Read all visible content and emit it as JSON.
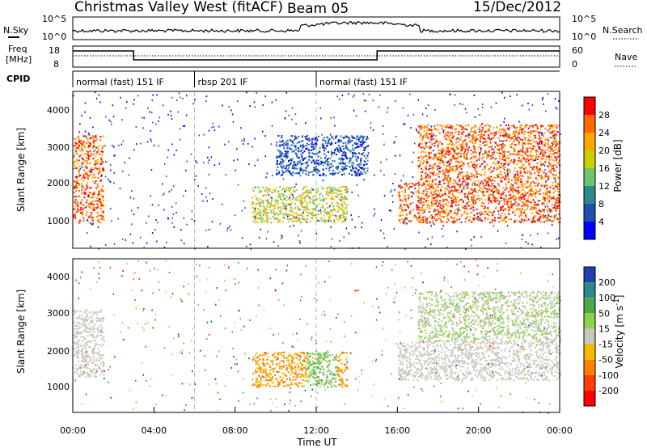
{
  "header": {
    "station": "Christmas Valley West (fitACF)",
    "beam": "Beam 05",
    "date": "15/Dec/2012"
  },
  "noise_panel": {
    "left_label": "N.Sky",
    "left_ticks": [
      "10^5",
      "10^0"
    ],
    "right_ticks": [
      "10^5",
      "10^0"
    ],
    "right_label": "N.Search"
  },
  "freq_panel": {
    "left_label_line1": "Freq",
    "left_label_line2": "[MHz]",
    "left_ticks": [
      "18",
      "8"
    ],
    "right_ticks": [
      "60",
      "0"
    ],
    "right_label": "Nave"
  },
  "cpid_panel": {
    "label": "CPID",
    "segments": [
      {
        "text": "normal (fast) 151 IF",
        "start_hour": 0,
        "end_hour": 6
      },
      {
        "text": "rbsp 201 IF",
        "start_hour": 6,
        "end_hour": 12
      },
      {
        "text": "normal (fast) 151 IF",
        "start_hour": 12,
        "end_hour": 24
      }
    ]
  },
  "x_axis": {
    "label": "Time UT",
    "ticks": [
      "00:00",
      "04:00",
      "08:00",
      "12:00",
      "16:00",
      "20:00",
      "00:00"
    ],
    "range_hours": [
      0,
      24
    ]
  },
  "power_panel": {
    "ylabel": "Slant Range [km]",
    "yticks": [
      "1000",
      "2000",
      "3000",
      "4000"
    ],
    "colorbar_label": "Power [dB]",
    "colorbar_ticks": [
      "28",
      "24",
      "20",
      "16",
      "12",
      "8",
      "4"
    ],
    "colors": [
      "#ff0000",
      "#ff6a00",
      "#ffa600",
      "#c8d200",
      "#6ec36e",
      "#2a8a8a",
      "#1f4fb0",
      "#0000ff"
    ]
  },
  "velocity_panel": {
    "ylabel": "Slant Range [km]",
    "yticks": [
      "1000",
      "2000",
      "3000",
      "4000"
    ],
    "colorbar_label": "Velocity [m s^-1]",
    "colorbar_ticks": [
      "200",
      "100",
      "50",
      "15",
      "-15",
      "-50",
      "-100",
      "-200"
    ],
    "colors": [
      "#1f3fb0",
      "#2a8a8a",
      "#4aa84a",
      "#8fd04f",
      "#c8c8c0",
      "#f7b800",
      "#ff8000",
      "#ff4000",
      "#ff0000"
    ]
  },
  "chart_data": {
    "type": "heatmap",
    "title": "Christmas Valley West (fitACF)",
    "xlabel": "Time UT",
    "ylabel": "Slant Range [km]",
    "x_range_hours": [
      0,
      24
    ],
    "y_range_km": [
      180,
      4500
    ],
    "power_regions": [
      {
        "t_start": 0.0,
        "t_end": 1.5,
        "r_start": 900,
        "r_end": 3300,
        "power_db": 28
      },
      {
        "t_start": 8.8,
        "t_end": 13.5,
        "r_start": 900,
        "r_end": 1900,
        "power_db": 20
      },
      {
        "t_start": 10.0,
        "t_end": 14.5,
        "r_start": 2200,
        "r_end": 3300,
        "power_db": 8
      },
      {
        "t_start": 16.0,
        "t_end": 24.0,
        "r_start": 900,
        "r_end": 2000,
        "power_db": 28
      },
      {
        "t_start": 17.0,
        "t_end": 24.0,
        "r_start": 2000,
        "r_end": 3600,
        "power_db": 28
      }
    ],
    "velocity_regions": [
      {
        "t_start": 0.0,
        "t_end": 1.5,
        "r_start": 1200,
        "r_end": 3100,
        "velocity_ms": 0
      },
      {
        "t_start": 8.8,
        "t_end": 11.5,
        "r_start": 900,
        "r_end": 1900,
        "velocity_ms": -50
      },
      {
        "t_start": 11.5,
        "t_end": 13.0,
        "r_start": 900,
        "r_end": 1900,
        "velocity_ms": 30
      },
      {
        "t_start": 13.0,
        "t_end": 13.5,
        "r_start": 900,
        "r_end": 1900,
        "velocity_ms": -50
      },
      {
        "t_start": 16.0,
        "t_end": 24.0,
        "r_start": 1100,
        "r_end": 2200,
        "velocity_ms": 0
      },
      {
        "t_start": 17.0,
        "t_end": 24.0,
        "r_start": 2200,
        "r_end": 3600,
        "velocity_ms": 15
      }
    ]
  }
}
